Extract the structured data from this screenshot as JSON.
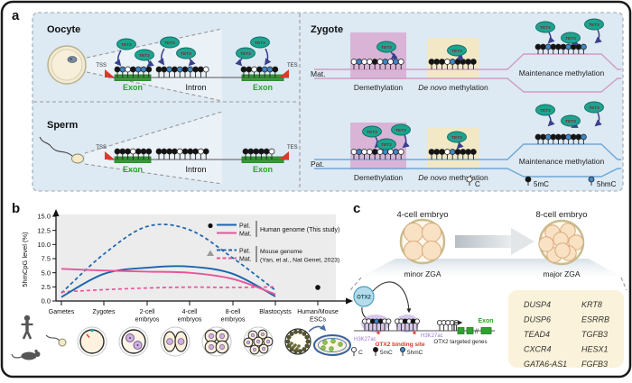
{
  "figure": {
    "panel_a_label": "a",
    "panel_b_label": "b",
    "panel_c_label": "c"
  },
  "colors": {
    "panel_bg": "#dde9f3",
    "c": "#ffffff",
    "five_mc": "#141414",
    "five_hmc": "#3f86c6",
    "tet_fill": "#1fa390",
    "tet_text": "#7c2a2a",
    "mat_line": "#cf9ec6",
    "pat_line": "#6fa8d8",
    "demeth_box": "#d9b4d7",
    "denovo_box": "#f2e8c6",
    "exon_green": "#2fa12f",
    "red": "#d93a2b",
    "human_pat": "#1b64ad",
    "human_mat": "#e8559a",
    "blob": "#c9b4e4",
    "h3k27ac_text": "#9a79cf",
    "gene_box": "#faf2da"
  },
  "panel_a": {
    "oocyte_label": "Oocyte",
    "sperm_label": "Sperm",
    "zygote_label": "Zygote",
    "mat_label": "Mat.",
    "pat_label": "Pat.",
    "tss": "TSS",
    "tes": "TES",
    "exon": "Exon",
    "intron": "Intron",
    "tet_label": "TET3",
    "demethylation_label": "Demethylation",
    "denovo_italic": "De novo",
    "denovo_rest": " methylation",
    "maintenance_label": "Maintenance methylation",
    "tracks": {
      "oocyte_exon1": "mhcmhhm",
      "oocyte_intron": "mmhmhmhmmc",
      "oocyte_exon2": "mmcmhhm",
      "sperm_exon1": "mmmcmmm",
      "sperm_intron": "mmmmcmmmcm",
      "sperm_exon2": "mmmmmc",
      "demethylation": "chccmchchc",
      "denovo": "mmmchmmmm",
      "maintenance": "mmhmmmhmmh"
    },
    "legend": {
      "c": "C",
      "mc": "5mC",
      "hmc": "5hmC"
    }
  },
  "chart_data": {
    "type": "line",
    "title": "",
    "xlabel": "",
    "ylabel": "5hmCpG level (%)",
    "grid": false,
    "legend_position": "upper right",
    "categories": [
      "Gametes",
      "Zygotes",
      "2-cell\nembryos",
      "4-cell\nembryos",
      "8-cell\nembryos",
      "Blastocysts",
      "Human/Mouse\nESCs"
    ],
    "ylim": [
      0,
      15
    ],
    "yticks": [
      0,
      2.5,
      5,
      7.5,
      10,
      12.5,
      15
    ],
    "ytick_labels": [
      "0.0",
      "2.5",
      "5.0",
      "7.5",
      "10.0",
      "12.5",
      "15.0"
    ],
    "series": [
      {
        "name": "Mouse genome Pat.",
        "style": "dashed",
        "color": "#1b64ad",
        "values": [
          1.4,
          8.3,
          13.2,
          12.6,
          7.6,
          1.9
        ]
      },
      {
        "name": "Mouse genome Mat.",
        "style": "dashed",
        "color": "#e8559a",
        "values": [
          1.6,
          2.0,
          2.3,
          2.45,
          2.4,
          2.5
        ]
      },
      {
        "name": "Human genome Pat.",
        "style": "solid",
        "color": "#1b64ad",
        "values": [
          0.7,
          4.8,
          5.9,
          6.1,
          4.8,
          0.8
        ]
      },
      {
        "name": "Human genome Mat.",
        "style": "solid",
        "color": "#e8559a",
        "values": [
          5.7,
          5.4,
          5.2,
          5.0,
          3.9,
          1.2
        ]
      }
    ],
    "point": {
      "label": "Human/Mouse ESCs",
      "x_index": 6,
      "value": 2.4,
      "color": "#111111"
    },
    "legend": {
      "pat": "Pat.",
      "mat": "Mat.",
      "human": "Human genome (This study)",
      "mouse_line1": "Mouse genome",
      "mouse_line2": "(Yan, et al., Nat Genet, 2023)"
    }
  },
  "panel_c": {
    "four_cell": "4-cell embryo",
    "eight_cell": "8-cell embryo",
    "minor_zga": "minor ZGA",
    "major_zga": "major ZGA",
    "otx2": "OTX2",
    "h3k27ac": "H3K27ac",
    "binding_site": "OTX2 binding site",
    "targeted_genes": "OTX2 targeted genes",
    "exon": "Exon",
    "star": "★",
    "break_symbol": "//",
    "genes_col1": [
      "DUSP4",
      "DUSP6",
      "TEAD4",
      "CXCR4",
      "GATA6-AS1"
    ],
    "genes_col2": [
      "KRT8",
      "ESRRB",
      "TGFB3",
      "HESX1",
      "FGFB3"
    ],
    "tracks": {
      "enhancer1": "ccmhmcc",
      "enhancer2": "ccmcmc",
      "promoter": "ccccc"
    },
    "legend": {
      "c": "C",
      "mc": "5mC",
      "hmc": "5hmC"
    }
  }
}
